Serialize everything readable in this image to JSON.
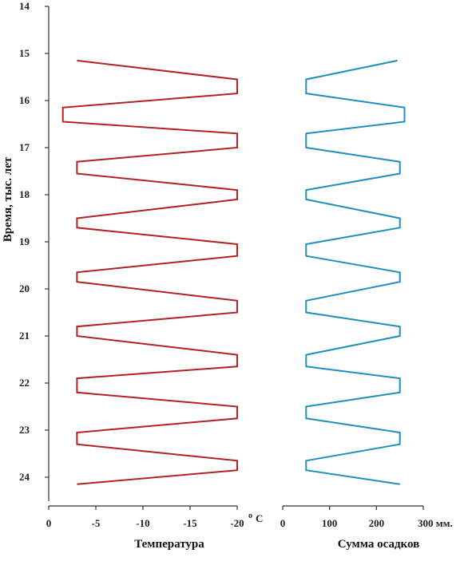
{
  "chart_data": {
    "type": "line",
    "ylabel": "Время, тыс. лет",
    "yticks": [
      14,
      15,
      16,
      17,
      18,
      19,
      20,
      21,
      22,
      23,
      24
    ],
    "ylim": [
      14,
      24.4
    ],
    "y_inverted": true,
    "panels": [
      {
        "xlabel": "Температура",
        "xticks": [
          0,
          -5,
          -10,
          -15,
          -20
        ],
        "xtick_labels": [
          "0",
          "-5",
          "-10",
          "-15",
          "-20"
        ],
        "xunit": "o C",
        "xlim": [
          0,
          -20
        ],
        "color": "#b22222",
        "series": [
          {
            "x": [
              -3.0,
              -20.0,
              -20.0,
              -1.5,
              -1.5,
              -20.0,
              -20.0,
              -3.0,
              -3.0,
              -20.0,
              -20.0,
              -3.0,
              -3.0,
              -20.0,
              -20.0,
              -3.0,
              -3.0,
              -20.0,
              -20.0,
              -3.0,
              -3.0,
              -20.0,
              -20.0,
              -3.0,
              -3.0,
              -20.0,
              -20.0,
              -3.0,
              -3.0,
              -20.0,
              -20.0,
              -3.0
            ],
            "y": [
              15.15,
              15.55,
              15.85,
              16.15,
              16.45,
              16.7,
              17.0,
              17.3,
              17.55,
              17.9,
              18.1,
              18.5,
              18.7,
              19.05,
              19.3,
              19.65,
              19.85,
              20.25,
              20.5,
              20.8,
              21.0,
              21.4,
              21.65,
              21.9,
              22.2,
              22.5,
              22.75,
              23.05,
              23.3,
              23.65,
              23.85,
              24.15
            ]
          }
        ]
      },
      {
        "xlabel": "Сумма осадков",
        "xticks": [
          0,
          100,
          200,
          300
        ],
        "xtick_labels": [
          "0",
          "100",
          "200",
          "300 мм."
        ],
        "xlim": [
          0,
          300
        ],
        "color": "#1f8fbf",
        "series": [
          {
            "x": [
              245,
              50,
              50,
              260,
              260,
              50,
              50,
              250,
              250,
              50,
              50,
              250,
              250,
              50,
              50,
              250,
              250,
              50,
              50,
              250,
              250,
              50,
              50,
              250,
              250,
              50,
              50,
              250,
              250,
              50,
              50,
              250
            ],
            "y": [
              15.15,
              15.55,
              15.85,
              16.15,
              16.45,
              16.7,
              17.0,
              17.3,
              17.55,
              17.9,
              18.1,
              18.5,
              18.7,
              19.05,
              19.3,
              19.65,
              19.85,
              20.25,
              20.5,
              20.8,
              21.0,
              21.4,
              21.65,
              21.9,
              22.2,
              22.5,
              22.75,
              23.05,
              23.3,
              23.65,
              23.85,
              24.15
            ]
          }
        ]
      }
    ]
  }
}
